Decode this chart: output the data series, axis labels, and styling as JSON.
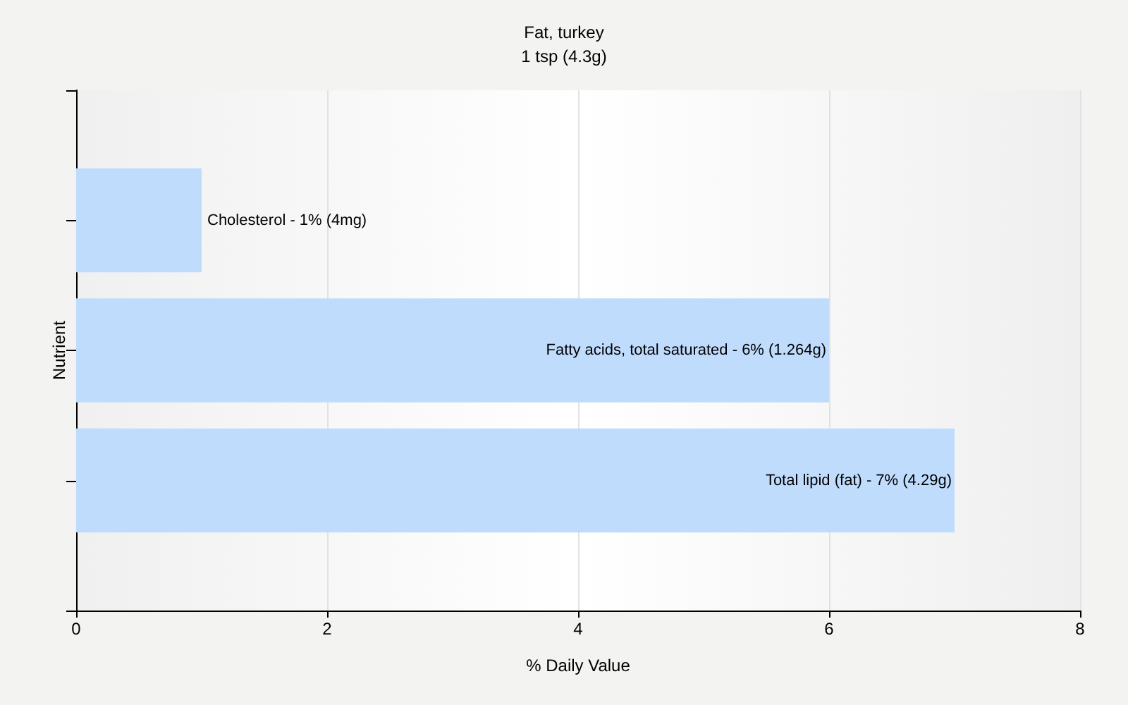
{
  "chart_data": {
    "type": "bar",
    "orientation": "horizontal",
    "title": "Fat, turkey",
    "subtitle": "1 tsp (4.3g)",
    "xlabel": "% Daily Value",
    "ylabel": "Nutrient",
    "categories": [
      null,
      null,
      null
    ],
    "values": [
      1,
      6,
      7
    ],
    "annotations": [
      {
        "text": "Cholesterol - 1% (4mg)",
        "x": 1
      },
      {
        "text": "Fatty acids, total saturated - 6% (1.264g)",
        "x": 6
      },
      {
        "text": "Total lipid (fat) - 7% (4.29g)",
        "x": 7
      }
    ],
    "color": "#bfdcfd",
    "xlim": [
      0,
      8
    ],
    "xticks": [
      0,
      2,
      4,
      6,
      8
    ],
    "grid": "x",
    "tick_labels": "x"
  }
}
